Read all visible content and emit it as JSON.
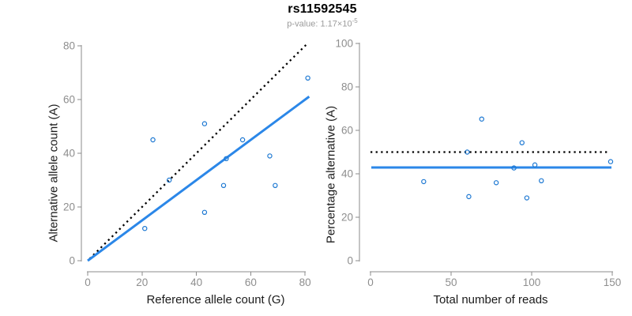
{
  "figure": {
    "title": "rs11592545",
    "subtitle_prefix": "p-value: 1.17×10",
    "subtitle_exponent": "-5"
  },
  "colors": {
    "point": "#1b77d2",
    "fit_line": "#2b87e8",
    "dotted_line": "#000000",
    "axis": "#8b8b8b",
    "tick_label": "#8e8e8e",
    "axis_title": "#1b1b1b",
    "title": "#000000",
    "subtitle": "#9b9b9b",
    "background": "#ffffff"
  },
  "chart_data": [
    {
      "type": "scatter",
      "panel": "left",
      "xlabel": "Reference allele count (G)",
      "ylabel": "Alternative allele count (A)",
      "xlim": [
        0,
        80
      ],
      "ylim": [
        0,
        80
      ],
      "xticks": [
        0,
        20,
        40,
        60,
        80
      ],
      "yticks": [
        0,
        20,
        40,
        60,
        80
      ],
      "grid": false,
      "legend": null,
      "points": [
        [
          81,
          68
        ],
        [
          43,
          51
        ],
        [
          24,
          45
        ],
        [
          57,
          45
        ],
        [
          51,
          38
        ],
        [
          67,
          39
        ],
        [
          30,
          30
        ],
        [
          50,
          28
        ],
        [
          69,
          28
        ],
        [
          43,
          18
        ],
        [
          21,
          12
        ]
      ],
      "lines": [
        {
          "role": "identity",
          "style": "dotted",
          "color": "#000000",
          "x1": 0.7,
          "y1": 0.7,
          "x2": 81,
          "y2": 81
        },
        {
          "role": "fit",
          "style": "solid",
          "color": "#2b87e8",
          "x1": 0,
          "y1": 0,
          "x2": 81.5,
          "y2": 61.1,
          "slope": 0.75
        }
      ]
    },
    {
      "type": "scatter",
      "panel": "right",
      "xlabel": "Total number of reads",
      "ylabel": "Percentage alternative (A)",
      "xlim": [
        0,
        150
      ],
      "ylim": [
        0,
        100
      ],
      "xticks": [
        0,
        50,
        100,
        150
      ],
      "yticks": [
        0,
        20,
        40,
        60,
        80,
        100
      ],
      "grid": false,
      "legend": null,
      "points": [
        [
          149,
          45.6
        ],
        [
          94,
          54.3
        ],
        [
          69,
          65.2
        ],
        [
          102,
          44.1
        ],
        [
          89,
          42.7
        ],
        [
          106,
          36.8
        ],
        [
          60,
          50.0
        ],
        [
          78,
          35.9
        ],
        [
          97,
          28.9
        ],
        [
          61,
          29.5
        ],
        [
          33,
          36.4
        ]
      ],
      "lines": [
        {
          "role": "expected",
          "style": "dotted",
          "color": "#000000",
          "y": 50,
          "x1": 0,
          "x2": 147.5
        },
        {
          "role": "observed",
          "style": "solid",
          "color": "#2b87e8",
          "y": 42.9,
          "x1": 0.5,
          "x2": 149.5
        }
      ]
    }
  ]
}
